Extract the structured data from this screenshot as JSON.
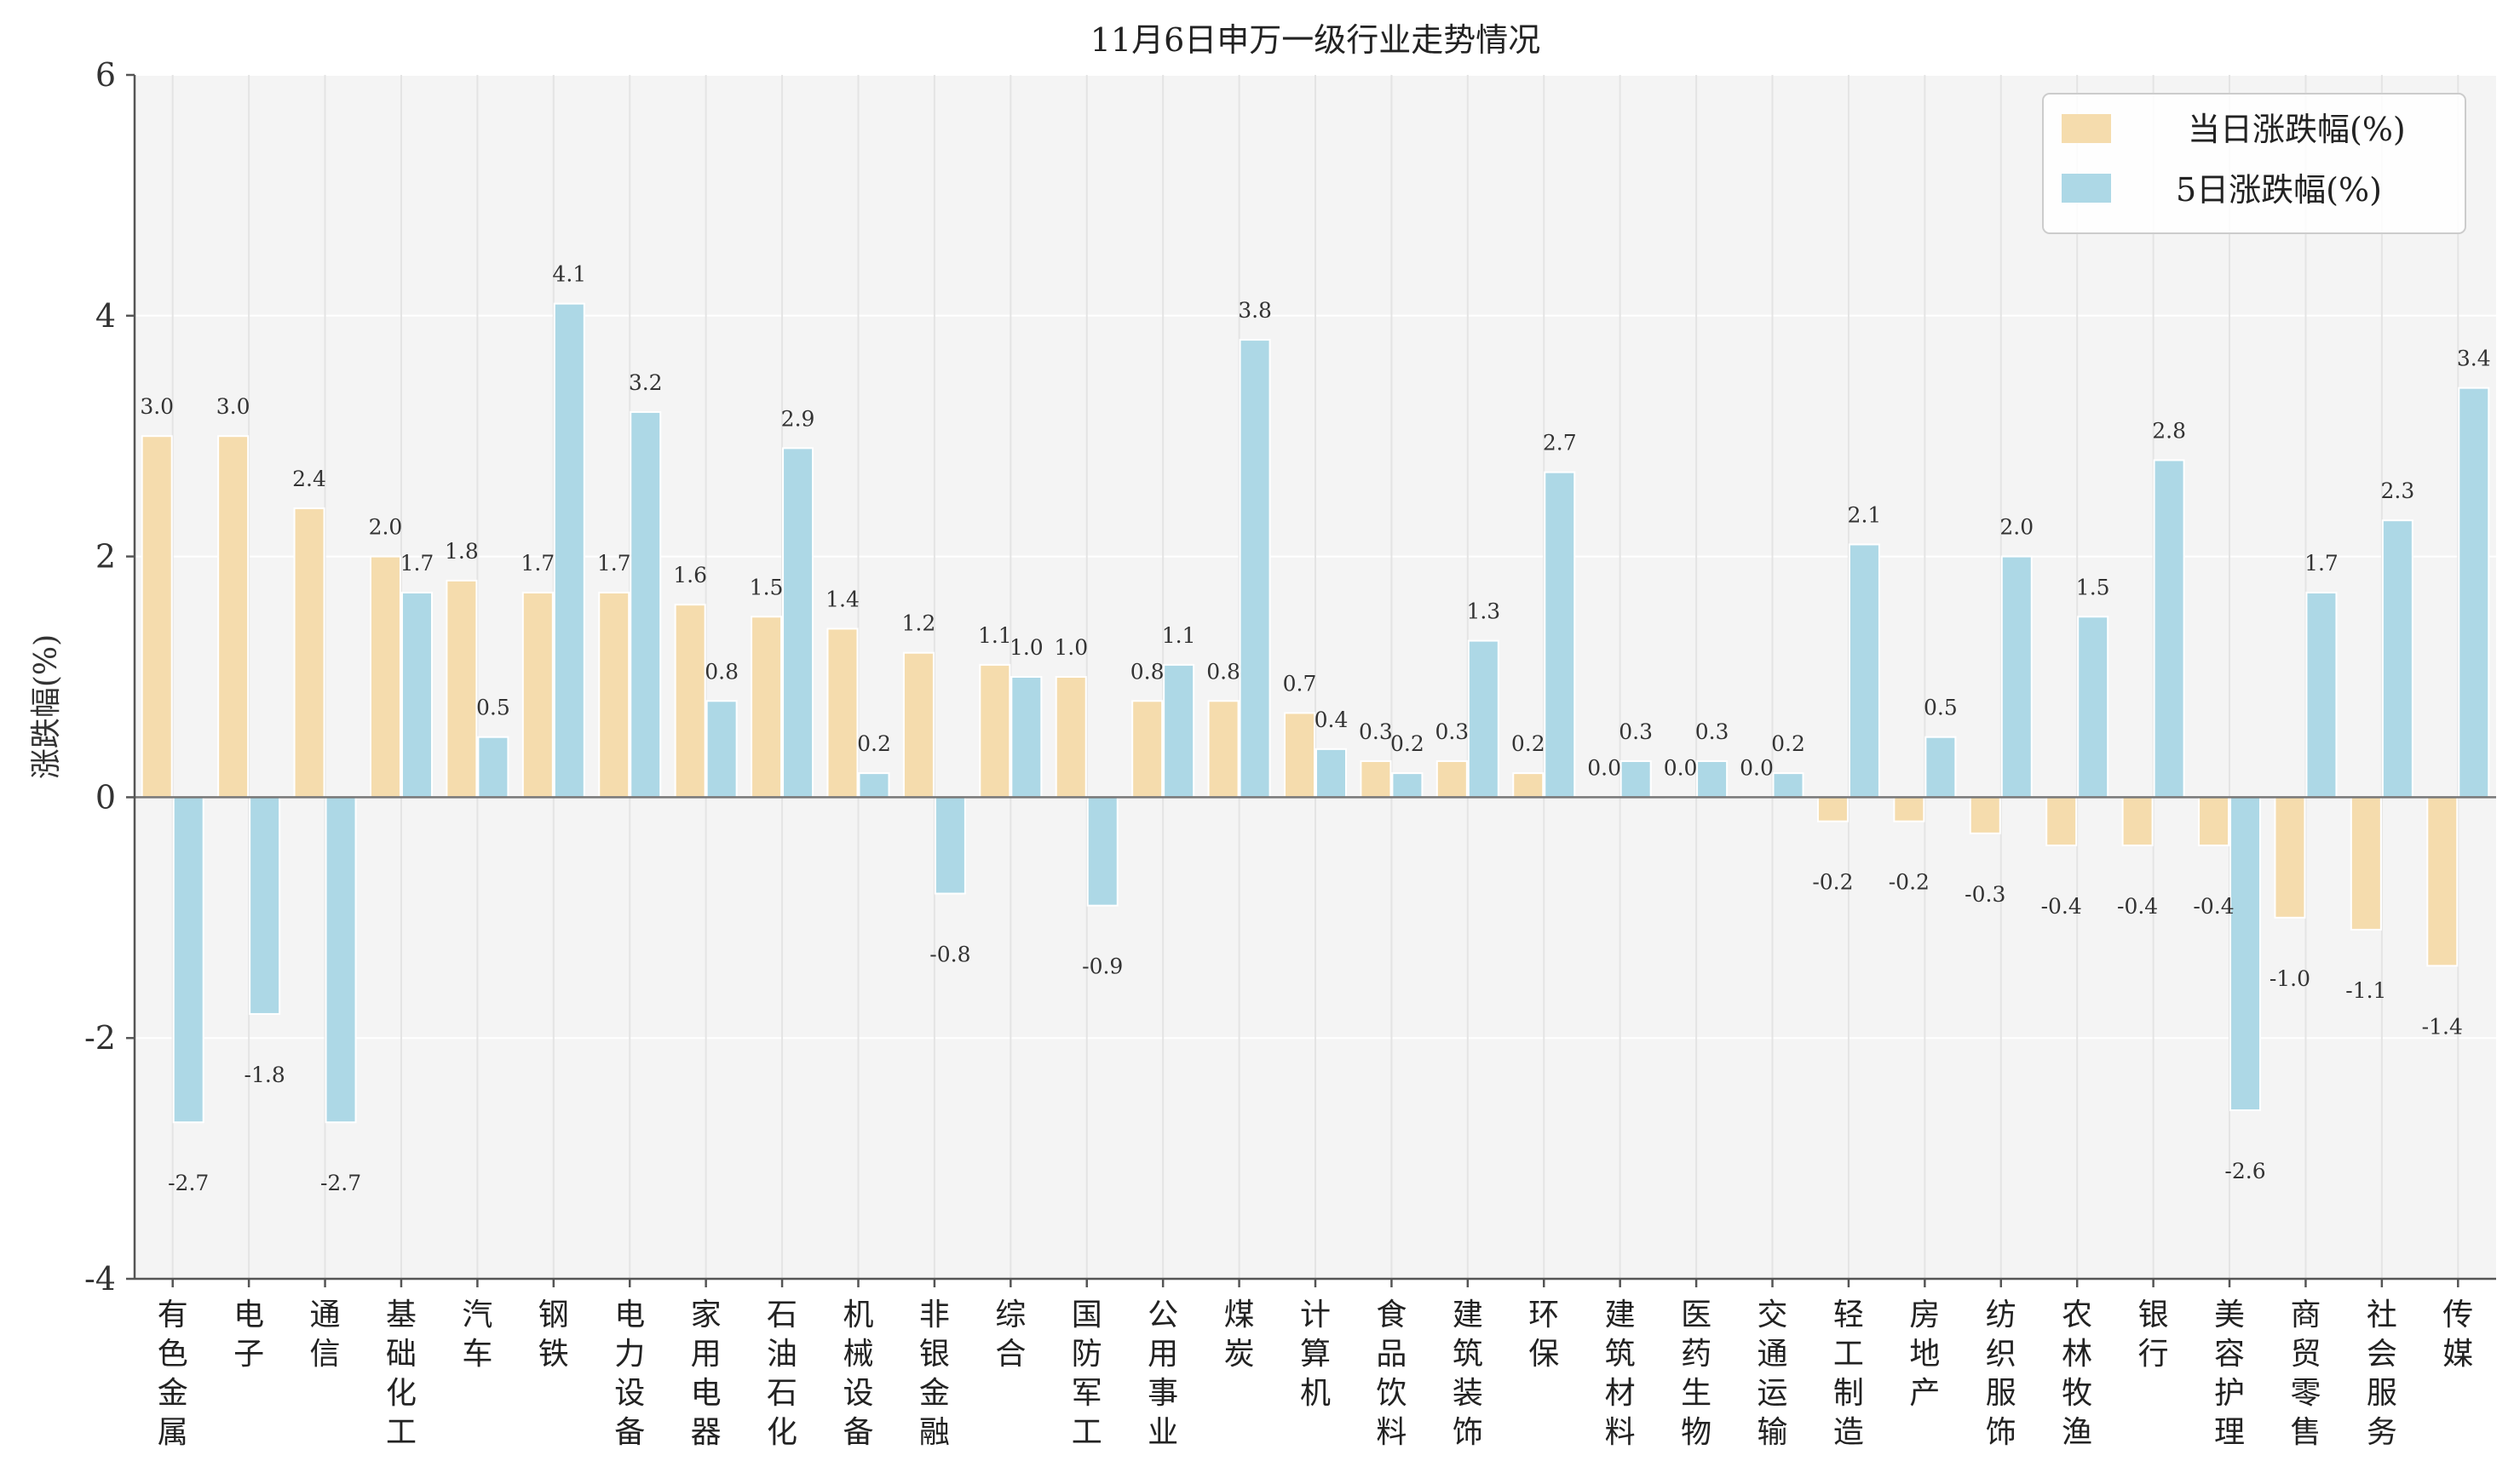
{
  "chart_data": {
    "type": "bar",
    "title": "11月6日申万一级行业走势情况",
    "xlabel": "",
    "ylabel": "涨跌幅(%)",
    "ylim": [
      -4,
      6
    ],
    "yticks": [
      "-4",
      "-2",
      "0",
      "2",
      "4",
      "6"
    ],
    "grid": true,
    "legend": "top-right",
    "categories": [
      "有色金属",
      "电子",
      "通信",
      "基础化工",
      "汽车",
      "钢铁",
      "电力设备",
      "家用电器",
      "石油石化",
      "机械设备",
      "非银金融",
      "综合",
      "国防军工",
      "公用事业",
      "煤炭",
      "计算机",
      "食品饮料",
      "建筑装饰",
      "环保",
      "建筑材料",
      "医药生物",
      "交通运输",
      "轻工制造",
      "房地产",
      "纺织服饰",
      "农林牧渔",
      "银行",
      "美容护理",
      "商贸零售",
      "社会服务",
      "传媒"
    ],
    "series": [
      {
        "name": "当日涨跌幅(%)",
        "color": "#f5dcad",
        "values": [
          3.0,
          3.0,
          2.4,
          2.0,
          1.8,
          1.7,
          1.7,
          1.6,
          1.5,
          1.4,
          1.2,
          1.1,
          1.0,
          0.8,
          0.8,
          0.7,
          0.3,
          0.3,
          0.2,
          0.0,
          0.0,
          0.0,
          -0.2,
          -0.2,
          -0.3,
          -0.4,
          -0.4,
          -0.4,
          -1.0,
          -1.1,
          -1.4
        ],
        "labels": [
          "3.0",
          "3.0",
          "2.4",
          "2.0",
          "1.8",
          "1.7",
          "1.7",
          "1.6",
          "1.5",
          "1.4",
          "1.2",
          "1.1",
          "1.0",
          "0.8",
          "0.8",
          "0.7",
          "0.3",
          "0.3",
          "0.2",
          "0.0",
          "0.0",
          "0.0",
          "-0.2",
          "-0.2",
          "-0.3",
          "-0.4",
          "-0.4",
          "-0.4",
          "-1.0",
          "-1.1",
          "-1.4"
        ]
      },
      {
        "name": "5日涨跌幅(%)",
        "color": "#add8e6",
        "values": [
          -2.7,
          -1.8,
          -2.7,
          1.7,
          0.5,
          4.1,
          3.2,
          0.8,
          2.9,
          0.2,
          -0.8,
          1.0,
          -0.9,
          1.1,
          3.8,
          0.4,
          0.2,
          1.3,
          2.7,
          0.3,
          0.3,
          0.2,
          2.1,
          0.5,
          2.0,
          1.5,
          2.8,
          -2.6,
          1.7,
          2.3,
          3.4
        ],
        "labels": [
          "-2.7",
          "-1.8",
          "-2.7",
          "1.7",
          "0.5",
          "4.1",
          "3.2",
          "0.8",
          "2.9",
          "0.2",
          "-0.8",
          "1.0",
          "-0.9",
          "1.1",
          "3.8",
          "0.4",
          "0.2",
          "1.3",
          "2.7",
          "0.3",
          "0.3",
          "0.2",
          "2.1",
          "0.5",
          "2.0",
          "1.5",
          "2.8",
          "-2.6",
          "1.7",
          "2.3",
          "3.4"
        ]
      }
    ]
  },
  "colors": {
    "plot_background": "#f4f4f4",
    "grid": "#e4e4e4",
    "axis": "#555555"
  }
}
